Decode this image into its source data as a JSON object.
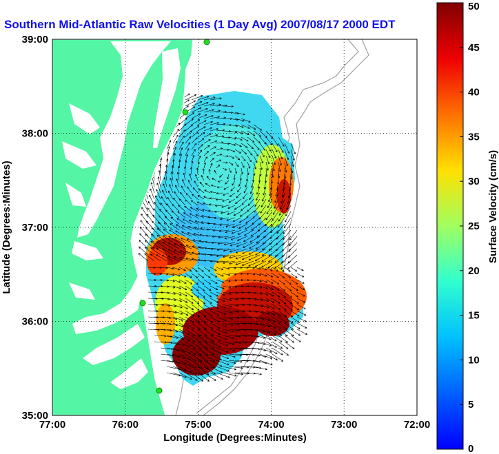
{
  "title": "Southern Mid-Atlantic Raw Velocities (1 Day Avg) 2007/08/17 2000 EDT",
  "map": {
    "x_axis": {
      "label": "Longitude (Degrees:Minutes)",
      "ticks": [
        "77:00",
        "76:00",
        "75:00",
        "74:00",
        "73:00",
        "72:00"
      ],
      "values": [
        -77,
        -76,
        -75,
        -74,
        -73,
        -72
      ]
    },
    "y_axis": {
      "label": "Latitude (Degrees:Minutes)",
      "ticks": [
        "39:00",
        "38:00",
        "37:00",
        "36:00",
        "35:00"
      ],
      "values": [
        39,
        38,
        37,
        36,
        35
      ]
    },
    "grid": "dotted",
    "colors": {
      "land": "#55f5a6",
      "water": "#ffffff",
      "bathymetry": "#a0a0a0",
      "station": "#22cc22",
      "vector": "#000000"
    }
  },
  "colorbar": {
    "label": "Surface Velocity (cm/s)",
    "ticks": [
      "50",
      "45",
      "40",
      "35",
      "30",
      "25",
      "20",
      "15",
      "10",
      "5",
      "0"
    ],
    "min": 0,
    "max": 50,
    "colormap": "jet"
  }
}
